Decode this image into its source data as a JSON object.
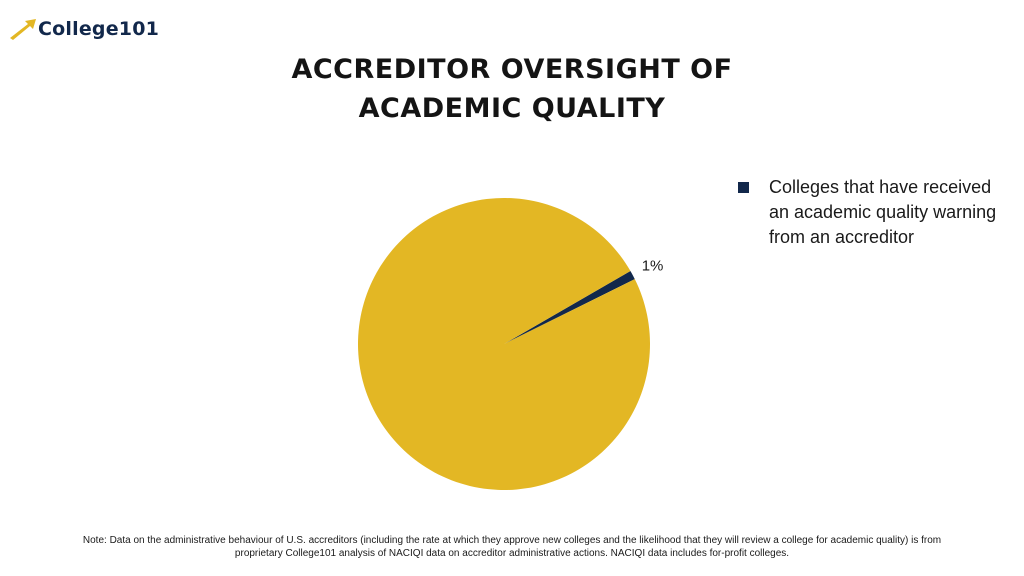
{
  "brand": {
    "name": "College101"
  },
  "title_line1": "ACCREDITOR OVERSIGHT OF",
  "title_line2": "ACADEMIC QUALITY",
  "colors": {
    "highlight": "#12284b",
    "rest": "#e3b724",
    "logo_arrow": "#e3b724"
  },
  "chart_data": {
    "type": "pie",
    "title": "ACCREDITOR OVERSIGHT OF ACADEMIC QUALITY",
    "slices": [
      {
        "label": "Colleges that have received an academic quality warning from an accreditor",
        "value": 1,
        "value_label": "1%",
        "color": "#12284b"
      },
      {
        "label": "",
        "value": 99,
        "value_label": "",
        "color": "#e3b724"
      }
    ],
    "legend_position": "right"
  },
  "note": "Note: Data on the administrative behaviour of U.S. accreditors (including the rate at which they approve new colleges and the likelihood that they will review a college for academic quality) is from proprietary College101 analysis of NACIQI data on accreditor administrative actions. NACIQI data includes for-profit colleges."
}
